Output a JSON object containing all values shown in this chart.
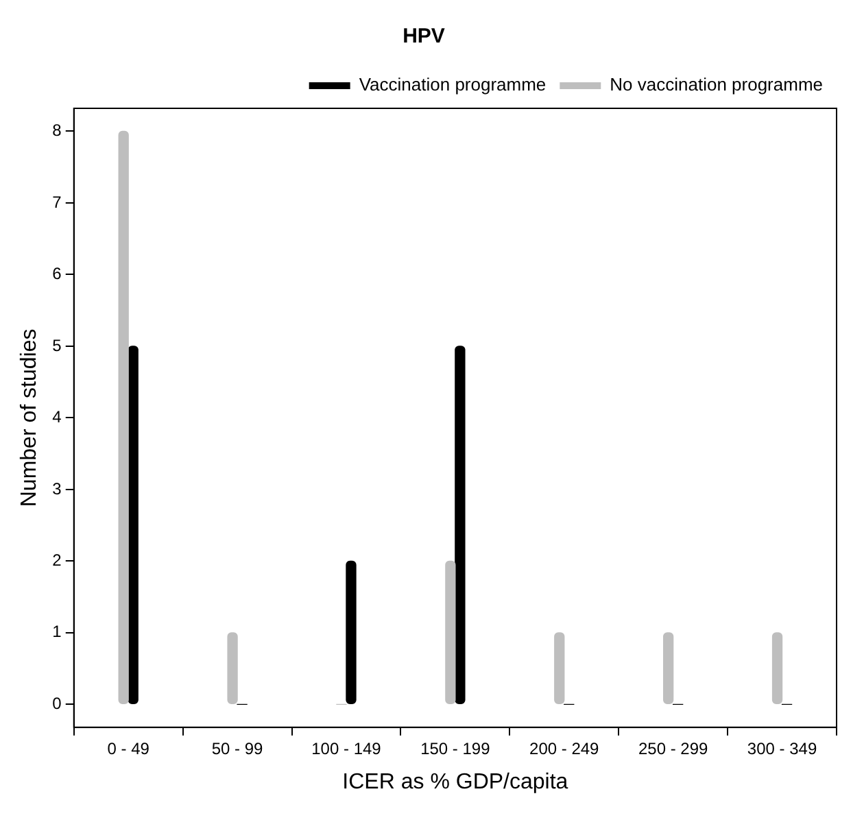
{
  "chart_data": {
    "type": "bar",
    "title": "HPV",
    "xlabel": "ICER as % GDP/capita",
    "ylabel": "Number of studies",
    "categories": [
      "0 - 49",
      "50 - 99",
      "100 - 149",
      "150 - 199",
      "200 - 249",
      "250 - 299",
      "300 - 349"
    ],
    "series": [
      {
        "name": "No vaccination programme",
        "color": "#bebebe",
        "values": [
          8,
          1,
          0,
          2,
          1,
          1,
          1
        ]
      },
      {
        "name": "Vaccination programme",
        "color": "#000000",
        "values": [
          5,
          0,
          2,
          5,
          0,
          0,
          0
        ]
      }
    ],
    "ylim": [
      -0.32,
      8.32
    ],
    "yticks": [
      0,
      1,
      2,
      3,
      4,
      5,
      6,
      7,
      8
    ],
    "grid": false,
    "legend": "top right"
  }
}
